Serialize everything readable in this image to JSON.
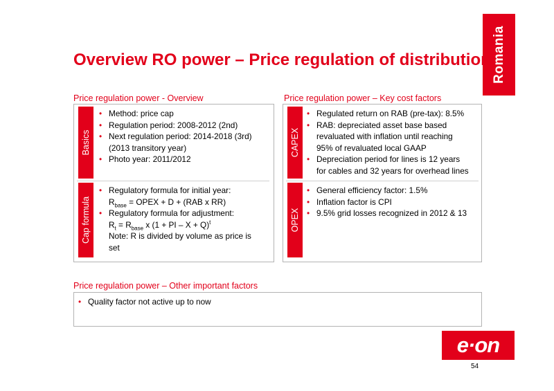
{
  "country_tab": "Romania",
  "title": "Overview RO power – Price regulation of distribution",
  "left": {
    "heading": "Price regulation power - Overview",
    "basics": {
      "tab": "Basics",
      "items": [
        "Method: price cap",
        "Regulation period: 2008-2012 (2nd)",
        "Next regulation period: 2014-2018 (3rd)",
        "(2013 transitory year)",
        "Photo year: 2011/2012"
      ]
    },
    "cap_formula": {
      "tab": "Cap formula",
      "item1": "Regulatory formula for initial year:",
      "f1_r": "R",
      "f1_sub": "base",
      "f1_rest": " = OPEX + D + (RAB x RR)",
      "item2": "Regulatory formula for adjustment:",
      "f2_r": "R",
      "f2_sub": "t",
      "f2_mid": " = R",
      "f2_sub2": "base",
      "f2_rest": " x (1 + PI – X + Q)",
      "f2_sup": "t",
      "note": "Note: R is divided by volume as price is",
      "note2": "set"
    }
  },
  "right": {
    "heading": "Price regulation power – Key cost factors",
    "capex": {
      "tab": "CAPEX",
      "items": [
        "Regulated return on RAB (pre-tax): 8.5%",
        "RAB: depreciated asset base based",
        "revaluated with inflation until reaching",
        "95% of revaluated local GAAP",
        "Depreciation period for lines is 12 years",
        "for cables and 32 years for overhead lines"
      ]
    },
    "opex": {
      "tab": "OPEX",
      "items": [
        "General efficiency factor:  1.5%",
        "Inflation factor is CPI",
        "9.5% grid losses recognized in 2012 & 13"
      ]
    }
  },
  "bottom": {
    "heading": "Price regulation power – Other important factors",
    "items": [
      "Quality factor not active up to now"
    ]
  },
  "logo_text": "e·on",
  "page_number": "54",
  "colors": {
    "accent": "#e2001a",
    "border": "#b3b3b3"
  }
}
